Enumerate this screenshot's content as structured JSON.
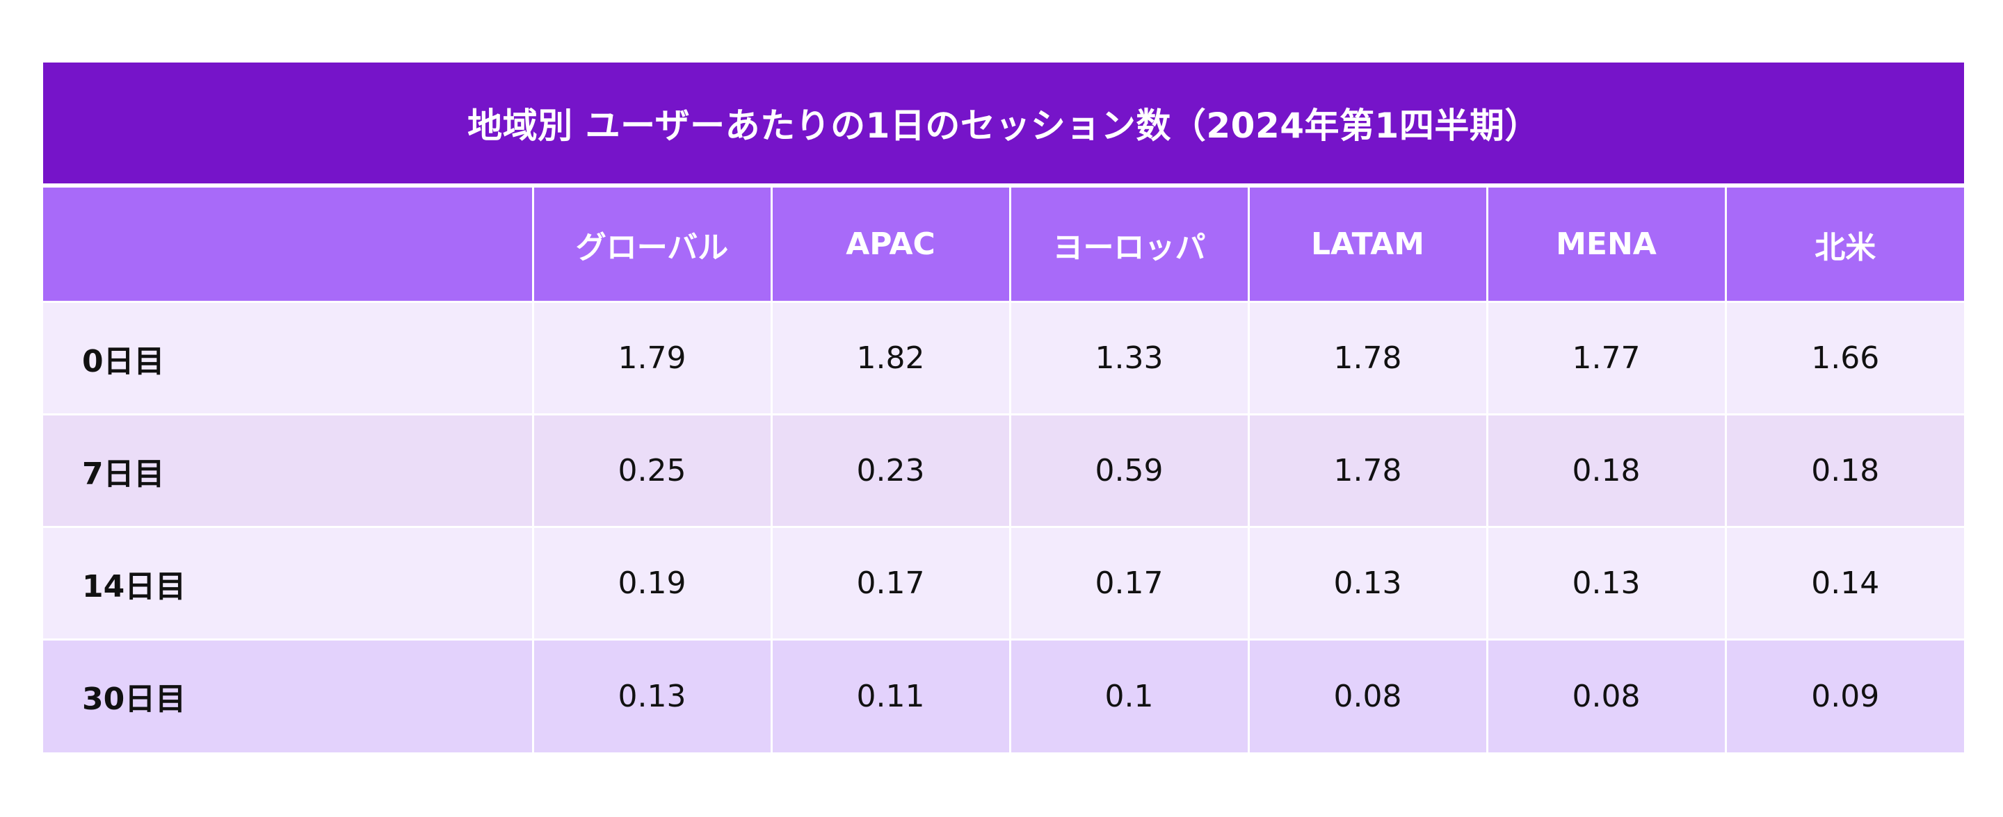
{
  "chart_data": {
    "type": "table",
    "title": "地域別 ユーザーあたりの1日のセッション数（2024年第1四半期）",
    "columns": [
      "",
      "グローバル",
      "APAC",
      "ヨーロッパ",
      "LATAM",
      "MENA",
      "北米"
    ],
    "rows": [
      {
        "label": "0日目",
        "values": [
          "1.79",
          "1.82",
          "1.33",
          "1.78",
          "1.77",
          "1.66"
        ]
      },
      {
        "label": "7日目",
        "values": [
          "0.25",
          "0.23",
          "0.59",
          "1.78",
          "0.18",
          "0.18"
        ]
      },
      {
        "label": "14日目",
        "values": [
          "0.19",
          "0.17",
          "0.17",
          "0.13",
          "0.13",
          "0.14"
        ]
      },
      {
        "label": "30日目",
        "values": [
          "0.13",
          "0.11",
          "0.1",
          "0.08",
          "0.08",
          "0.09"
        ]
      }
    ]
  },
  "colors": {
    "title_bg": "#7614C9",
    "header_bg": "#A86AF9",
    "row_light": "#F3EBFD",
    "row_mid": "#EBDDF8",
    "row_last": "#E3D2FC"
  }
}
